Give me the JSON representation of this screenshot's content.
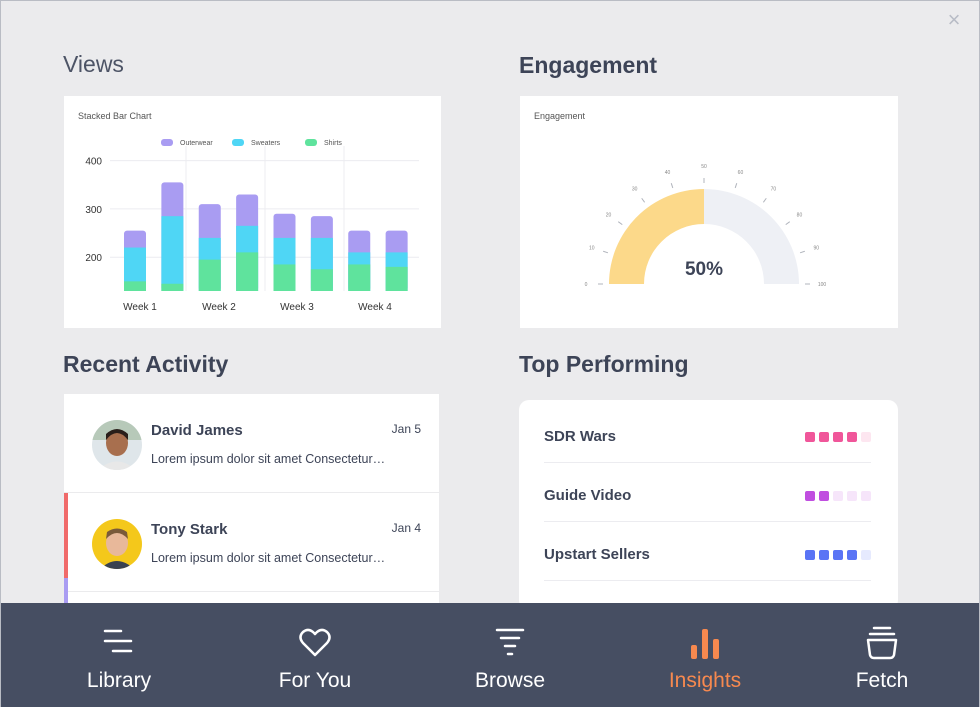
{
  "close_icon": "×",
  "views": {
    "title": "Views",
    "chart_data": {
      "type": "bar",
      "title": "Stacked Bar Chart",
      "legend": [
        "Outerwear",
        "Sweaters",
        "Shirts"
      ],
      "colors": {
        "Outerwear": "#a99cf2",
        "Sweaters": "#4fd6f5",
        "Shirts": "#5fe39d"
      },
      "categories": [
        "",
        "Week 1",
        "",
        "Week 2",
        "",
        "Week 3",
        "",
        "Week 4"
      ],
      "x_tick_labels": [
        "Week 1",
        "Week 2",
        "Week 3",
        "Week 4"
      ],
      "yticks": [
        "400",
        "300",
        "200"
      ],
      "ylim": [
        130,
        420
      ],
      "series": [
        {
          "name": "Shirts",
          "values": [
            150,
            145,
            195,
            210,
            185,
            175,
            185,
            180
          ]
        },
        {
          "name": "Sweaters",
          "values": [
            220,
            285,
            240,
            265,
            240,
            240,
            210,
            210
          ]
        },
        {
          "name": "Outerwear",
          "values": [
            255,
            355,
            310,
            330,
            290,
            285,
            255,
            255
          ]
        }
      ]
    }
  },
  "engagement": {
    "title": "Engagement",
    "card_label": "Engagement",
    "value": 50,
    "value_text": "50%",
    "ticks": [
      "0",
      "10",
      "20",
      "30",
      "40",
      "50",
      "60",
      "70",
      "80",
      "90",
      "100"
    ]
  },
  "recent_activity": {
    "title": "Recent Activity",
    "items": [
      {
        "name": "David James",
        "date": "Jan 5",
        "text": "Lorem ipsum dolor sit amet Consectetur…"
      },
      {
        "name": "Tony Stark",
        "date": "Jan 4",
        "text": "Lorem ipsum dolor sit amet Consectetur…"
      }
    ]
  },
  "top_performing": {
    "title": "Top Performing",
    "items": [
      {
        "name": "SDR Wars",
        "color": "#f0569a",
        "filled": 4,
        "total": 5
      },
      {
        "name": "Guide Video",
        "color": "#c04ee0",
        "filled": 2,
        "total": 5
      },
      {
        "name": "Upstart Sellers",
        "color": "#5a74f5",
        "filled": 4,
        "total": 5
      }
    ]
  },
  "nav": {
    "items": [
      {
        "label": "Library",
        "icon": "library-icon"
      },
      {
        "label": "For You",
        "icon": "heart-icon"
      },
      {
        "label": "Browse",
        "icon": "filter-icon"
      },
      {
        "label": "Insights",
        "icon": "bar-chart-icon"
      },
      {
        "label": "Fetch",
        "icon": "basket-icon"
      }
    ],
    "active": "Insights",
    "active_color": "#f7894f"
  }
}
